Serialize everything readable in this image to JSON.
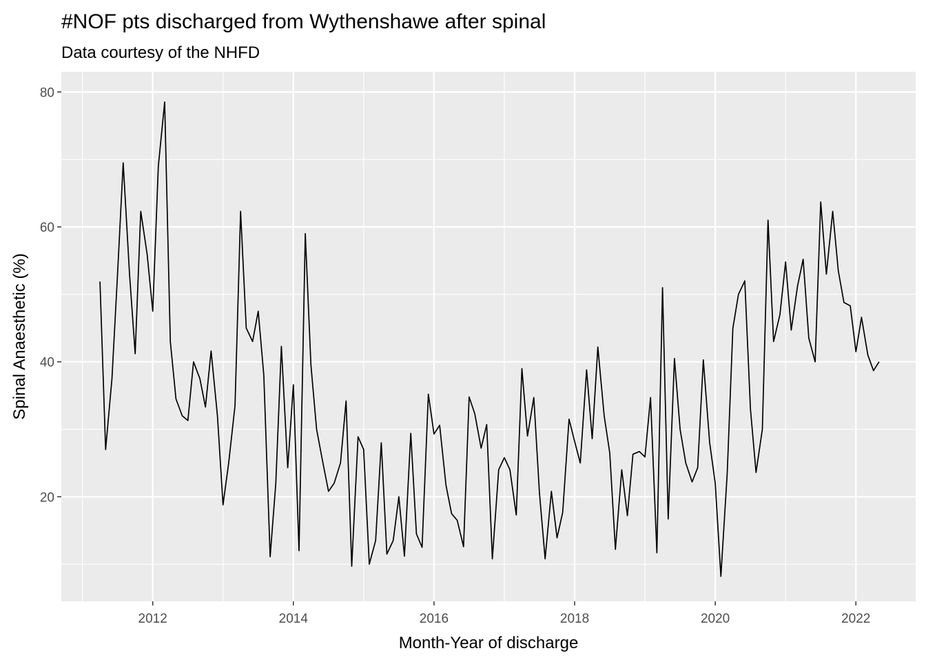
{
  "chart_data": {
    "type": "line",
    "title": "#NOF pts discharged from Wythenshawe after spinal",
    "subtitle": "Data courtesy of the NHFD",
    "xlabel": "Month-Year of discharge",
    "ylabel": "Spinal Anaesthetic (%)",
    "x_ticks": [
      2012,
      2014,
      2016,
      2018,
      2020,
      2022
    ],
    "y_ticks": [
      20,
      40,
      60,
      80
    ],
    "xlim": [
      2010.7,
      2022.85
    ],
    "ylim": [
      4.5,
      83
    ],
    "grid": true,
    "background": "#EBEBEB",
    "line_color": "#000000",
    "series": [
      {
        "x": [
          2011.25,
          2011.33,
          2011.42,
          2011.5,
          2011.58,
          2011.67,
          2011.75,
          2011.83,
          2011.92,
          2012.0,
          2012.08,
          2012.17,
          2012.25,
          2012.33,
          2012.42,
          2012.5,
          2012.58,
          2012.67,
          2012.75,
          2012.83,
          2012.92,
          2013.0,
          2013.08,
          2013.17,
          2013.25,
          2013.33,
          2013.42,
          2013.5,
          2013.58,
          2013.67,
          2013.75,
          2013.83,
          2013.92,
          2014.0,
          2014.08,
          2014.17,
          2014.25,
          2014.33,
          2014.42,
          2014.5,
          2014.58,
          2014.67,
          2014.75,
          2014.83,
          2014.92,
          2015.0,
          2015.08,
          2015.17,
          2015.25,
          2015.33,
          2015.42,
          2015.5,
          2015.58,
          2015.67,
          2015.75,
          2015.83,
          2015.92,
          2016.0,
          2016.08,
          2016.17,
          2016.25,
          2016.33,
          2016.42,
          2016.5,
          2016.58,
          2016.67,
          2016.75,
          2016.83,
          2016.92,
          2017.0,
          2017.08,
          2017.17,
          2017.25,
          2017.33,
          2017.42,
          2017.5,
          2017.58,
          2017.67,
          2017.75,
          2017.83,
          2017.92,
          2018.0,
          2018.08,
          2018.17,
          2018.25,
          2018.33,
          2018.42,
          2018.5,
          2018.58,
          2018.67,
          2018.75,
          2018.83,
          2018.92,
          2019.0,
          2019.08,
          2019.17,
          2019.25,
          2019.33,
          2019.42,
          2019.5,
          2019.58,
          2019.67,
          2019.75,
          2019.83,
          2019.92,
          2020.0,
          2020.08,
          2020.17,
          2020.25,
          2020.33,
          2020.42,
          2020.5,
          2020.58,
          2020.67,
          2020.75,
          2020.83,
          2020.92,
          2021.0,
          2021.08,
          2021.17,
          2021.25,
          2021.33,
          2021.42,
          2021.5,
          2021.58,
          2021.67,
          2021.75,
          2021.83,
          2021.92,
          2022.0,
          2022.08,
          2022.17,
          2022.25,
          2022.33
        ],
        "values": [
          51.9,
          27.0,
          37.5,
          53.0,
          69.5,
          53.0,
          41.2,
          62.3,
          56.0,
          47.5,
          69.0,
          78.5,
          43.0,
          34.5,
          32.0,
          31.3,
          40.0,
          37.5,
          33.3,
          41.6,
          32.0,
          18.8,
          25.0,
          33.5,
          62.3,
          45.0,
          43.0,
          47.5,
          38.0,
          11.1,
          22.0,
          42.3,
          24.3,
          36.6,
          12.0,
          59.0,
          39.5,
          30.0,
          25.0,
          20.8,
          22.0,
          25.0,
          34.2,
          9.7,
          28.9,
          27.0,
          10.0,
          13.5,
          28.0,
          11.5,
          13.5,
          20.0,
          11.2,
          29.4,
          14.5,
          12.5,
          35.2,
          29.3,
          30.6,
          21.7,
          17.5,
          16.5,
          12.6,
          34.8,
          32.3,
          27.2,
          30.7,
          10.8,
          24.0,
          25.8,
          24.0,
          17.3,
          39.0,
          29.0,
          34.7,
          20.5,
          10.8,
          20.8,
          13.9,
          17.7,
          31.5,
          28.2,
          25.0,
          38.8,
          28.6,
          42.2,
          32.0,
          26.5,
          12.2,
          24.0,
          17.2,
          26.3,
          26.7,
          25.9,
          34.7,
          11.7,
          51.0,
          16.7,
          40.5,
          30.0,
          25.0,
          22.2,
          24.3,
          40.3,
          28.0,
          22.0,
          8.2,
          23.5,
          45.0,
          50.0,
          52.0,
          33.0,
          23.6,
          30.0,
          61.0,
          43.0,
          47.0,
          54.8,
          44.7,
          51.2,
          55.2,
          43.5,
          40.0,
          63.7,
          53.0,
          62.3,
          53.5,
          48.8,
          48.3,
          41.5,
          46.6,
          41.0,
          38.7,
          40.0
        ]
      }
    ]
  }
}
